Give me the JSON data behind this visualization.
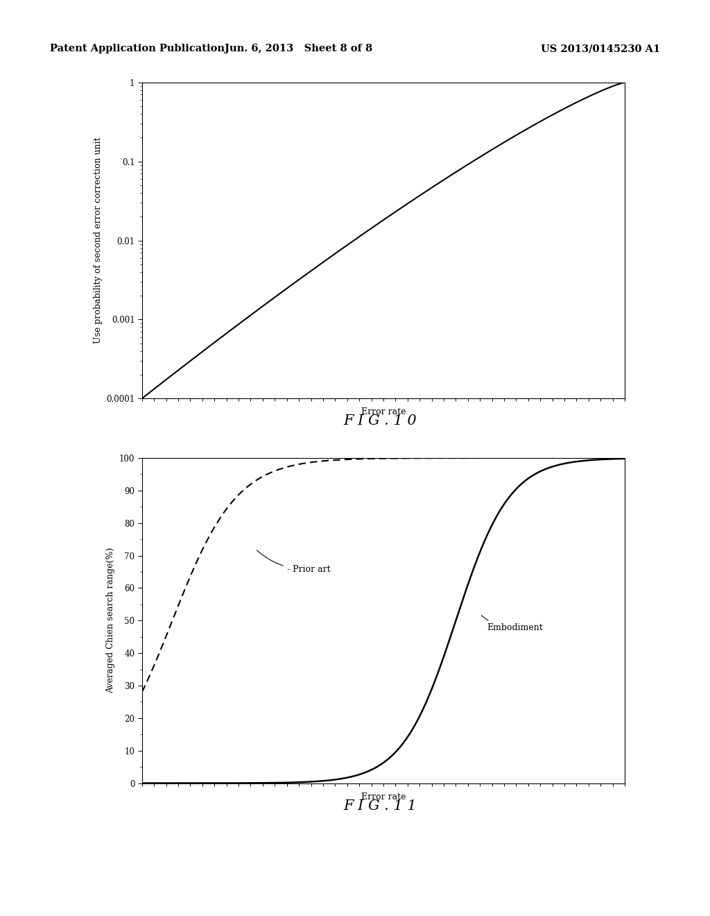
{
  "header_left": "Patent Application Publication",
  "header_center": "Jun. 6, 2013   Sheet 8 of 8",
  "header_right": "US 2013/0145230 A1",
  "fig10_title": "F I G . 1 0",
  "fig11_title": "F I G . 1 1",
  "fig10_ylabel": "Use probability of second error correction unit",
  "fig10_xlabel": "Error rate",
  "fig11_ylabel": "Averaged Chien search range(%)",
  "fig11_xlabel": "Error rate",
  "fig11_yticks": [
    0,
    10,
    20,
    30,
    40,
    50,
    60,
    70,
    80,
    90,
    100
  ],
  "prior_art_label": "- Prior art",
  "embodiment_label": "Embodiment",
  "bg_color": "#ffffff",
  "line_color": "#000000",
  "header_fontsize": 10.5,
  "fig_label_fontsize": 15,
  "axis_label_fontsize": 9,
  "tick_fontsize": 8.5
}
